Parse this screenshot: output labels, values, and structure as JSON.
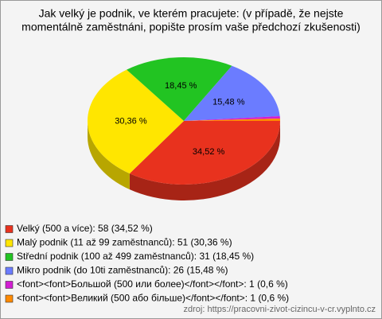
{
  "chart_data": {
    "type": "pie",
    "title": [
      "Jak velký je podnik, ve kterém pracujete: (v případě, že nejste",
      "momentálně zaměstnáni, popište prosím vaše předchozí zkušenosti)"
    ],
    "categories": [
      "Velký (500 a více): 58 (34,52 %)",
      "Malý podnik (11 až 99 zaměstnanců): 51 (30,36 %)",
      "Střední podnik (100 až 499 zaměstnanců): 31 (18,45 %)",
      "Mikro podnik (do 10ti zaměstnanců): 26 (15,48 %)",
      "<font><font>Большой (500 или более)</font></font>: 1 (0,6 %)",
      "<font><font>Великий (500 або більше)</font></font>: 1 (0,6 %)"
    ],
    "values": [
      34.52,
      30.36,
      18.45,
      15.48,
      0.6,
      0.6
    ],
    "value_labels": [
      "34,52 %",
      "30,36 %",
      "18,45 %",
      "15,48 %",
      null,
      null
    ],
    "colors": [
      "#e8321e",
      "#ffe600",
      "#22c422",
      "#6b7cff",
      "#d21ed2",
      "#ff8a00"
    ],
    "source": "zdroj: https://pracovni-zivot-cizincu-v-cr.vyplnto.cz"
  }
}
